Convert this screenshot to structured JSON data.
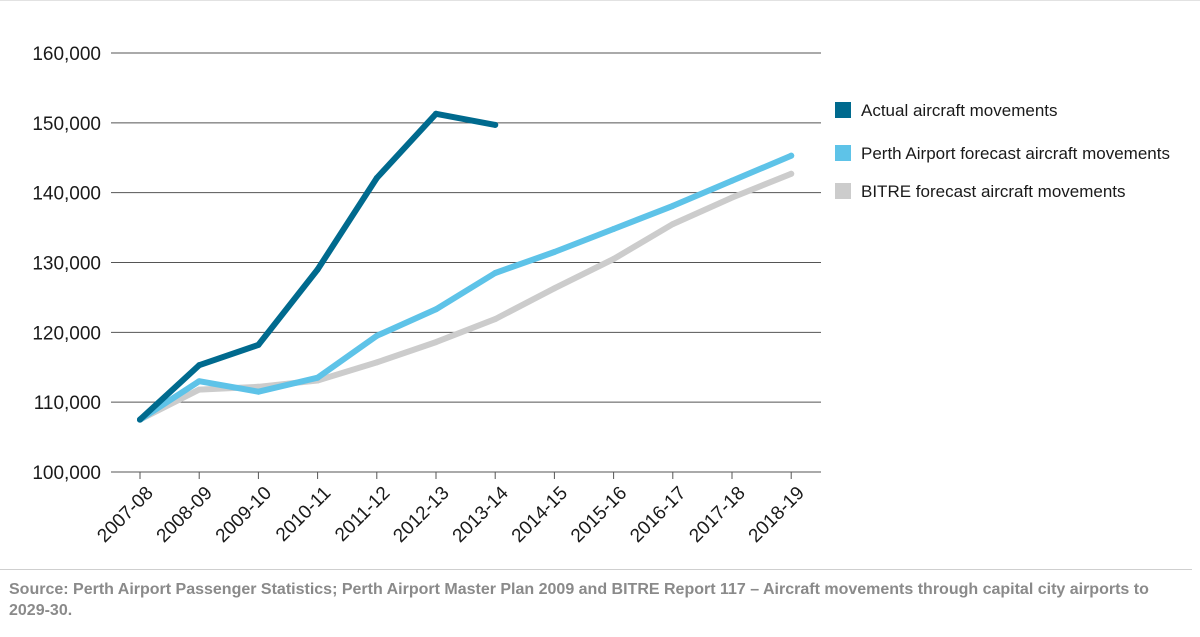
{
  "chart_data": {
    "type": "line",
    "categories": [
      "2007-08",
      "2008-09",
      "2009-10",
      "2010-11",
      "2011-12",
      "2012-13",
      "2013-14",
      "2014-15",
      "2015-16",
      "2016-17",
      "2017-18",
      "2018-19"
    ],
    "ylim": [
      100000,
      160000
    ],
    "yticks": [
      "100,000",
      "110,000",
      "120,000",
      "130,000",
      "140,000",
      "150,000",
      "160,000"
    ],
    "ytick_values": [
      100000,
      110000,
      120000,
      130000,
      140000,
      150000,
      160000
    ],
    "grid": true,
    "legend_position": "right",
    "series": [
      {
        "name": "Actual aircraft movements",
        "color": "#006a8e",
        "values": [
          107500,
          115300,
          118200,
          129000,
          142100,
          151300,
          149700,
          null,
          null,
          null,
          null,
          null
        ]
      },
      {
        "name": "Perth Airport forecast aircraft movements",
        "color": "#5ec3e8",
        "values": [
          107500,
          113000,
          111500,
          113500,
          119500,
          123300,
          128500,
          131500,
          134800,
          138100,
          141700,
          145300
        ]
      },
      {
        "name": "BITRE forecast aircraft movements",
        "color": "#cccccc",
        "values": [
          107500,
          111800,
          112200,
          113100,
          115700,
          118600,
          121900,
          126300,
          130500,
          135500,
          139300,
          142700
        ]
      }
    ]
  },
  "source_note": "Source: Perth Airport Passenger Statistics; Perth Airport Master Plan 2009 and BITRE Report 117 – Aircraft movements through capital city airports to 2029-30."
}
